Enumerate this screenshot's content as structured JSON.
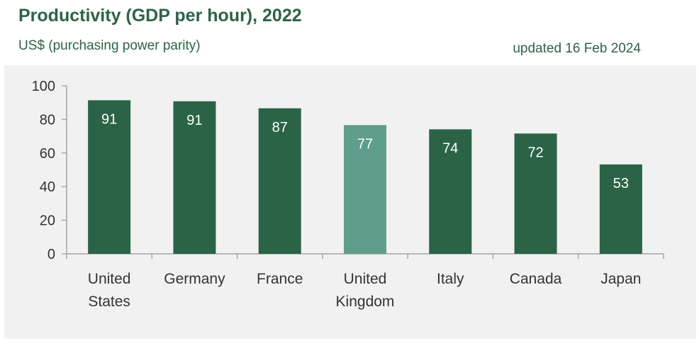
{
  "header": {
    "title": "Productivity (GDP per hour), 2022",
    "subtitle": "US$ (purchasing power parity)",
    "updated": "updated 16 Feb 2024"
  },
  "chart_data": {
    "type": "bar",
    "title": "Productivity (GDP per hour), 2022",
    "subtitle": "US$ (purchasing power parity)",
    "xlabel": "",
    "ylabel": "",
    "ylim": [
      0,
      100
    ],
    "yticks": [
      0,
      20,
      40,
      60,
      80,
      100
    ],
    "grid": false,
    "categories": [
      [
        "United",
        "States"
      ],
      [
        "Germany"
      ],
      [
        "France"
      ],
      [
        "United",
        "Kingdom"
      ],
      [
        "Italy"
      ],
      [
        "Canada"
      ],
      [
        "Japan"
      ]
    ],
    "values": [
      91.4,
      90.8,
      86.6,
      76.6,
      74.1,
      71.6,
      53.2
    ],
    "data_labels": [
      "91",
      "91",
      "87",
      "77",
      "74",
      "72",
      "53"
    ],
    "highlight_index": 3,
    "colors": {
      "bar": "#2b6347",
      "highlight": "#5e9e8b",
      "axis": "#a6a6a6",
      "text": "#333333",
      "title": "#2b6347",
      "background": "#f1f1f1"
    }
  }
}
